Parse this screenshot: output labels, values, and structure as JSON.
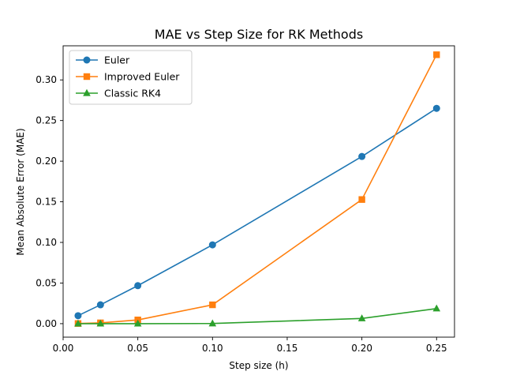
{
  "chart_data": {
    "type": "line",
    "title": "MAE vs Step Size for RK Methods",
    "xlabel": "Step size (h)",
    "ylabel": "Mean Absolute Error (MAE)",
    "xlim": [
      0.0,
      0.262
    ],
    "ylim": [
      -0.0166,
      0.342
    ],
    "xticks": [
      0.0,
      0.05,
      0.1,
      0.15,
      0.2,
      0.25
    ],
    "xtick_labels": [
      "0.00",
      "0.05",
      "0.10",
      "0.15",
      "0.20",
      "0.25"
    ],
    "yticks": [
      0.0,
      0.05,
      0.1,
      0.15,
      0.2,
      0.25,
      0.3
    ],
    "ytick_labels": [
      "0.00",
      "0.05",
      "0.10",
      "0.15",
      "0.20",
      "0.25",
      "0.30"
    ],
    "grid": false,
    "legend_position": "top-left",
    "x": [
      0.01,
      0.025,
      0.05,
      0.1,
      0.2,
      0.25
    ],
    "series": [
      {
        "name": "Euler",
        "color": "#1f77b4",
        "marker": "circle",
        "values": [
          0.0098,
          0.0232,
          0.0468,
          0.097,
          0.2058,
          0.265
        ]
      },
      {
        "name": "Improved Euler",
        "color": "#ff7f0e",
        "marker": "square",
        "values": [
          0.0002,
          0.001,
          0.0046,
          0.0232,
          0.1528,
          0.331
        ]
      },
      {
        "name": "Classic RK4",
        "color": "#2ca02c",
        "marker": "triangle",
        "values": [
          0.0,
          0.0,
          0.0,
          0.0002,
          0.0064,
          0.0186
        ]
      }
    ]
  }
}
